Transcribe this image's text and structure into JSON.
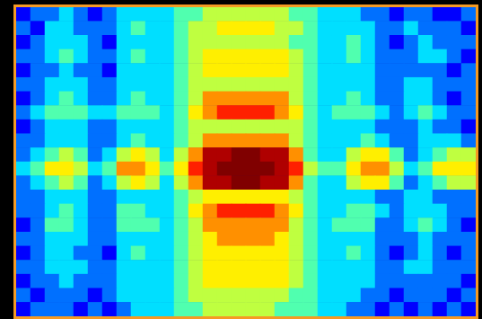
{
  "chart_data": {
    "type": "heatmap",
    "tick_labels": false,
    "zlim": [
      0,
      10
    ],
    "cells": [
      [
        1,
        2,
        2,
        3,
        2,
        1,
        2,
        3,
        3,
        3,
        3,
        4,
        4,
        5,
        5,
        5,
        5,
        5,
        5,
        4,
        4,
        3,
        3,
        3,
        2,
        2,
        1,
        2,
        2,
        1,
        1,
        2
      ],
      [
        2,
        1,
        3,
        3,
        2,
        2,
        2,
        3,
        4,
        3,
        3,
        4,
        5,
        5,
        6,
        6,
        6,
        6,
        5,
        5,
        4,
        3,
        3,
        3,
        3,
        2,
        2,
        3,
        2,
        2,
        2,
        1
      ],
      [
        1,
        2,
        3,
        3,
        3,
        2,
        1,
        3,
        3,
        3,
        3,
        4,
        5,
        5,
        5,
        5,
        5,
        5,
        5,
        4,
        4,
        3,
        3,
        4,
        3,
        2,
        1,
        2,
        3,
        2,
        2,
        2
      ],
      [
        2,
        2,
        3,
        4,
        3,
        2,
        2,
        3,
        4,
        3,
        3,
        4,
        5,
        6,
        6,
        6,
        6,
        6,
        6,
        5,
        4,
        3,
        3,
        4,
        3,
        2,
        2,
        2,
        3,
        3,
        2,
        1
      ],
      [
        1,
        2,
        2,
        3,
        2,
        2,
        1,
        3,
        3,
        3,
        3,
        4,
        5,
        6,
        6,
        6,
        6,
        6,
        6,
        5,
        4,
        3,
        3,
        3,
        3,
        2,
        2,
        2,
        2,
        2,
        1,
        2
      ],
      [
        2,
        2,
        3,
        3,
        3,
        2,
        2,
        3,
        3,
        3,
        3,
        4,
        5,
        5,
        5,
        5,
        5,
        5,
        5,
        5,
        4,
        3,
        3,
        3,
        3,
        2,
        2,
        3,
        3,
        2,
        2,
        2
      ],
      [
        1,
        2,
        3,
        4,
        3,
        2,
        2,
        3,
        4,
        3,
        3,
        4,
        5,
        7,
        7,
        7,
        7,
        7,
        7,
        5,
        4,
        3,
        3,
        4,
        3,
        2,
        2,
        3,
        3,
        2,
        1,
        2
      ],
      [
        2,
        3,
        4,
        4,
        4,
        3,
        3,
        4,
        4,
        4,
        3,
        4,
        6,
        7,
        8,
        8,
        8,
        8,
        7,
        6,
        4,
        3,
        4,
        4,
        4,
        3,
        2,
        3,
        4,
        3,
        2,
        2
      ],
      [
        1,
        2,
        3,
        3,
        3,
        2,
        2,
        3,
        3,
        3,
        3,
        4,
        5,
        5,
        5,
        5,
        5,
        5,
        5,
        5,
        4,
        3,
        3,
        3,
        3,
        2,
        2,
        2,
        3,
        2,
        2,
        1
      ],
      [
        2,
        2,
        3,
        3,
        3,
        2,
        2,
        3,
        4,
        3,
        3,
        4,
        5,
        7,
        7,
        7,
        7,
        7,
        7,
        5,
        4,
        3,
        3,
        3,
        4,
        3,
        2,
        2,
        3,
        3,
        3,
        2
      ],
      [
        2,
        3,
        4,
        5,
        4,
        2,
        3,
        5,
        6,
        5,
        3,
        5,
        7,
        9,
        9,
        10,
        10,
        9,
        9,
        7,
        4,
        3,
        3,
        5,
        6,
        6,
        4,
        2,
        3,
        4,
        5,
        5
      ],
      [
        3,
        4,
        6,
        6,
        5,
        3,
        4,
        7,
        7,
        6,
        4,
        6,
        8,
        9,
        10,
        10,
        10,
        10,
        9,
        8,
        5,
        4,
        4,
        6,
        7,
        7,
        5,
        3,
        4,
        6,
        6,
        6
      ],
      [
        2,
        3,
        4,
        5,
        4,
        2,
        3,
        5,
        6,
        5,
        3,
        5,
        7,
        9,
        9,
        10,
        10,
        9,
        9,
        7,
        4,
        3,
        3,
        5,
        6,
        6,
        4,
        2,
        3,
        4,
        5,
        5
      ],
      [
        2,
        2,
        3,
        3,
        3,
        2,
        2,
        3,
        3,
        3,
        3,
        4,
        5,
        6,
        6,
        6,
        6,
        6,
        6,
        5,
        4,
        3,
        3,
        3,
        3,
        2,
        2,
        3,
        3,
        2,
        2,
        2
      ],
      [
        2,
        2,
        3,
        4,
        3,
        2,
        2,
        4,
        4,
        3,
        3,
        4,
        6,
        7,
        8,
        8,
        8,
        8,
        7,
        6,
        4,
        3,
        3,
        4,
        4,
        3,
        2,
        3,
        3,
        3,
        2,
        2
      ],
      [
        1,
        2,
        4,
        4,
        3,
        2,
        2,
        4,
        4,
        4,
        3,
        4,
        5,
        7,
        7,
        7,
        7,
        7,
        7,
        5,
        4,
        3,
        4,
        4,
        4,
        2,
        2,
        3,
        4,
        3,
        2,
        1
      ],
      [
        2,
        2,
        3,
        3,
        3,
        2,
        2,
        3,
        3,
        3,
        3,
        4,
        5,
        6,
        7,
        7,
        7,
        7,
        6,
        5,
        4,
        3,
        3,
        3,
        3,
        2,
        2,
        2,
        3,
        2,
        2,
        2
      ],
      [
        1,
        2,
        3,
        3,
        2,
        2,
        1,
        3,
        4,
        3,
        3,
        4,
        5,
        6,
        6,
        6,
        6,
        6,
        6,
        5,
        4,
        3,
        3,
        4,
        3,
        2,
        1,
        2,
        3,
        2,
        1,
        2
      ],
      [
        2,
        2,
        3,
        3,
        3,
        2,
        2,
        3,
        3,
        3,
        3,
        4,
        5,
        6,
        6,
        6,
        6,
        6,
        6,
        5,
        4,
        3,
        3,
        3,
        3,
        2,
        2,
        3,
        3,
        2,
        2,
        2
      ],
      [
        1,
        2,
        2,
        3,
        2,
        2,
        2,
        3,
        3,
        3,
        3,
        4,
        5,
        6,
        6,
        6,
        6,
        6,
        6,
        5,
        4,
        3,
        3,
        3,
        3,
        2,
        2,
        2,
        2,
        2,
        2,
        1
      ],
      [
        2,
        1,
        2,
        2,
        2,
        1,
        2,
        3,
        3,
        3,
        3,
        4,
        5,
        5,
        5,
        5,
        5,
        5,
        5,
        4,
        4,
        3,
        3,
        3,
        2,
        2,
        1,
        2,
        2,
        2,
        1,
        2
      ],
      [
        1,
        2,
        2,
        2,
        1,
        2,
        1,
        2,
        3,
        3,
        3,
        4,
        4,
        5,
        5,
        5,
        5,
        5,
        4,
        4,
        4,
        3,
        3,
        2,
        2,
        1,
        2,
        1,
        2,
        1,
        2,
        1
      ]
    ]
  }
}
